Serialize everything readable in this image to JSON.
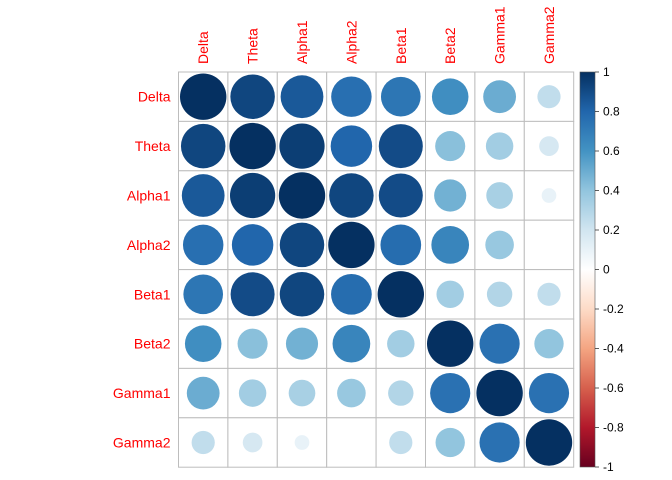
{
  "chart_data": {
    "type": "heatmap",
    "title": "",
    "variables": [
      "Delta",
      "Theta",
      "Alpha1",
      "Alpha2",
      "Beta1",
      "Beta2",
      "Gamma1",
      "Gamma2"
    ],
    "matrix": [
      [
        1.0,
        0.92,
        0.85,
        0.76,
        0.73,
        0.62,
        0.5,
        0.25
      ],
      [
        0.92,
        1.0,
        0.95,
        0.8,
        0.9,
        0.42,
        0.35,
        0.18
      ],
      [
        0.85,
        0.95,
        1.0,
        0.92,
        0.9,
        0.48,
        0.33,
        0.1
      ],
      [
        0.76,
        0.8,
        0.92,
        1.0,
        0.77,
        0.66,
        0.38,
        0.0
      ],
      [
        0.73,
        0.9,
        0.92,
        0.77,
        1.0,
        0.35,
        0.3,
        0.25
      ],
      [
        0.62,
        0.42,
        0.48,
        0.66,
        0.35,
        1.0,
        0.75,
        0.4
      ],
      [
        0.5,
        0.35,
        0.33,
        0.38,
        0.3,
        0.75,
        1.0,
        0.75
      ],
      [
        0.25,
        0.18,
        0.1,
        0.0,
        0.25,
        0.4,
        0.75,
        1.0
      ]
    ],
    "label_color": "#ff0000",
    "grid": true,
    "colorbar": {
      "range": [
        -1,
        1
      ],
      "ticks": [
        "1",
        "0.8",
        "0.6",
        "0.4",
        "0.2",
        "0",
        "-0.2",
        "-0.4",
        "-0.6",
        "-0.8",
        "-1"
      ],
      "colors": [
        "#67001f",
        "#b2182b",
        "#d6604d",
        "#f4a582",
        "#fddbc7",
        "#ffffff",
        "#d1e5f0",
        "#92c5de",
        "#4393c3",
        "#2166ac",
        "#053061"
      ]
    }
  }
}
